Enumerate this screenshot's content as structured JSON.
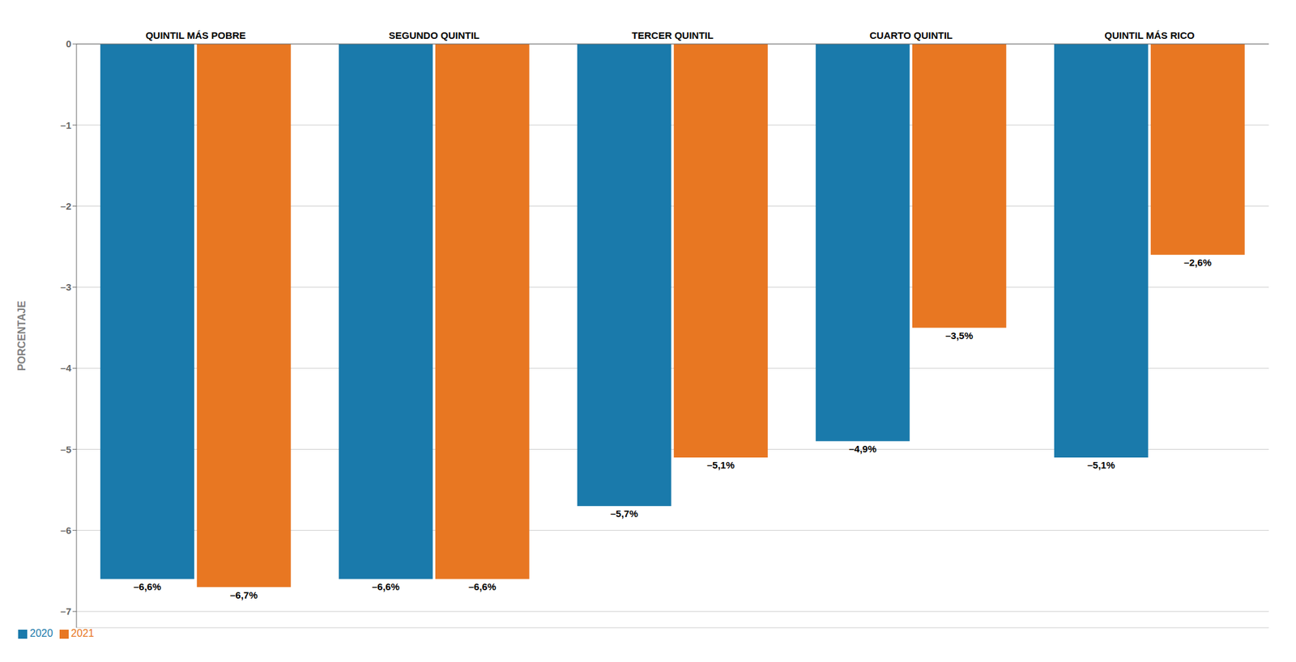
{
  "chart_data": {
    "type": "bar",
    "categories": [
      "QUINTIL MÁS POBRE",
      "SEGUNDO QUINTIL",
      "TERCER QUINTIL",
      "CUARTO QUINTIL",
      "QUINTIL MÁS RICO"
    ],
    "series": [
      {
        "name": "2020",
        "color": "#1a7aab",
        "values": [
          -6.6,
          -6.6,
          -5.7,
          -4.9,
          -5.1
        ],
        "value_labels": [
          "–6,6%",
          "–6,6%",
          "–5,7%",
          "–4,9%",
          "–5,1%"
        ]
      },
      {
        "name": "2021",
        "color": "#e87722",
        "values": [
          -6.7,
          -6.6,
          -5.1,
          -3.5,
          -2.6
        ],
        "value_labels": [
          "–6,7%",
          "–6,6%",
          "–5,1%",
          "–3,5%",
          "–2,6%"
        ]
      }
    ],
    "ylabel": "PORCENTAJE",
    "ylim": [
      -7.2,
      0
    ],
    "yticks": [
      0,
      {
        "value": -1,
        "label": "–1"
      },
      {
        "value": -2,
        "label": "–2"
      },
      {
        "value": -3,
        "label": "–3"
      },
      {
        "value": -4,
        "label": "–4"
      },
      {
        "value": -5,
        "label": "–5"
      },
      {
        "value": -6,
        "label": "–6"
      },
      {
        "value": -7,
        "label": "–7"
      }
    ],
    "grid": true,
    "legend": "lower left",
    "data_labels": true
  }
}
